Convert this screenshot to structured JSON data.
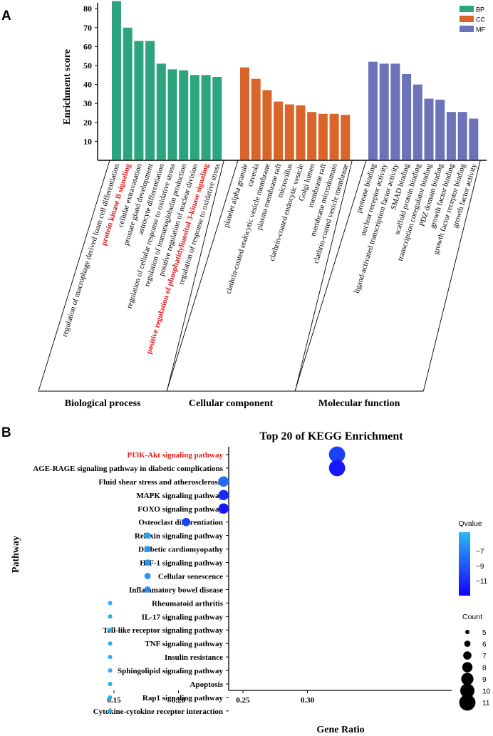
{
  "chart_data": [
    {
      "panel": "A",
      "type": "bar",
      "ylabel": "Enrichment score",
      "ylim": [
        0,
        85
      ],
      "yticks": [
        10,
        20,
        30,
        40,
        50,
        60,
        70,
        80
      ],
      "highlight_color": "#e41a1c",
      "legend": [
        {
          "key": "BP",
          "color": "#2ca57e"
        },
        {
          "key": "CC",
          "color": "#d9652a"
        },
        {
          "key": "MF",
          "color": "#6c73b8"
        }
      ],
      "groups": [
        {
          "name": "Biological process",
          "key": "BP",
          "color": "#2ca57e",
          "categories": [
            "regulation of macrophage derived foam cell differentiation",
            "protein kinase B signaling",
            "cellular extravasation",
            "prostate gland development",
            "astrocyte differentiation",
            "regulation of cellular response to oxidative stress",
            "regulation of immunoglobulin production",
            "positive regulation of nuclear division",
            "positive regulation of phosphatidylinositol 3-kinase signaling",
            "regulation of response to oxidative stress"
          ],
          "values": [
            84,
            70,
            63,
            63,
            51,
            48,
            47.5,
            45,
            45,
            44
          ],
          "highlight": [
            false,
            true,
            false,
            false,
            false,
            false,
            false,
            false,
            true,
            false
          ]
        },
        {
          "name": "Cellular component",
          "key": "CC",
          "color": "#d9652a",
          "categories": [
            "platelet alpha granule",
            "caveola",
            "clathrin-coated endocytic vesicle membrane",
            "plasma membrane raft",
            "microvillus",
            "clathrin-coated endocytic vesicle",
            "Golgi lumen",
            "membrane raft",
            "membrane microdomain",
            "clathrin-coated vesicle membrane"
          ],
          "values": [
            49,
            43,
            37,
            31,
            29.5,
            29,
            25.5,
            24.5,
            24.5,
            24
          ],
          "highlight": [
            false,
            false,
            false,
            false,
            false,
            false,
            false,
            false,
            false,
            false
          ]
        },
        {
          "name": "Molecular function",
          "key": "MF",
          "color": "#6c73b8",
          "categories": [
            "protease binding",
            "nuclear receptor activity",
            "ligand-activated transcription factor activity",
            "SMAD binding",
            "scaffold protein binding",
            "transcription coregulator binding",
            "PDZ domain binding",
            "growth factor binding",
            "growth factor receptor binding",
            "growth factor activity"
          ],
          "values": [
            52,
            51,
            51,
            45.5,
            40,
            32.5,
            32,
            25.5,
            25.5,
            22
          ],
          "highlight": [
            false,
            false,
            false,
            false,
            false,
            false,
            false,
            false,
            false,
            false
          ]
        }
      ]
    },
    {
      "panel": "B",
      "type": "scatter",
      "title": "Top 20 of KEGG Enrichment",
      "xlabel": "Gene Ratio",
      "ylabel": "Pathway",
      "xlim": [
        0.14,
        0.333
      ],
      "xticks": [
        0.15,
        0.2,
        0.25,
        0.3
      ],
      "xtick_labels": [
        "0.15",
        "0.20",
        "0.25",
        "0.30"
      ],
      "highlight_color": "#e41a1c",
      "categories": [
        "PI3K-Akt signaling pathway",
        "AGE-RAGE signaling pathway in diabetic complications",
        "Fluid shear stress and atherosclerosis",
        "MAPK signaling pathway",
        "FOXO signaling pathway",
        "Osteoclast differentiation",
        "Relaxin signaling pathway",
        "Diabetic cardiomyopathy",
        "HIF-1 signaling pathway",
        "Cellular senescence",
        "Inflammatory bowel disease",
        "Rheumatoid arthritis",
        "IL-17 signaling pathway",
        "Toll-like receptor signaling pathway",
        "TNF signaling pathway",
        "Insulin resistance",
        "Sphingolipid signaling pathway",
        "Apoptosis",
        "Rap1 signaling pathway",
        "Cytokine-cytokine receptor interaction"
      ],
      "highlight": [
        true,
        false,
        false,
        false,
        false,
        false,
        false,
        false,
        false,
        false,
        false,
        false,
        false,
        false,
        false,
        false,
        false,
        false,
        false,
        false
      ],
      "gene_ratio": [
        0.323,
        0.323,
        0.235,
        0.235,
        0.235,
        0.206,
        0.176,
        0.176,
        0.176,
        0.176,
        0.176,
        0.147,
        0.147,
        0.147,
        0.147,
        0.147,
        0.147,
        0.147,
        0.147,
        0.147
      ],
      "count": [
        11,
        11,
        8,
        8,
        8,
        7,
        6,
        6,
        6,
        6,
        6,
        5,
        5,
        5,
        5,
        5,
        5,
        5,
        5,
        5
      ],
      "qvalue_log": [
        -10,
        -12,
        -8,
        -11,
        -12,
        -10,
        -5.5,
        -6,
        -6,
        -6,
        -6.5,
        -5,
        -5,
        -5,
        -5,
        -5,
        -5,
        -5,
        -5,
        -5
      ],
      "legend_color_title": "Qvalue",
      "color_scale": {
        "min": -13,
        "max": -4.5,
        "low_color": "#1500ff",
        "high_color": "#29b9f2"
      },
      "colorbar_ticks": [
        -7,
        -9,
        -11
      ],
      "colorbar_labels": [
        "−7",
        "−9",
        "−11"
      ],
      "legend_size_title": "Count",
      "size_legend": [
        5,
        6,
        7,
        8,
        9,
        10,
        11
      ]
    }
  ],
  "panel_labels": {
    "a": "A",
    "b": "B"
  }
}
